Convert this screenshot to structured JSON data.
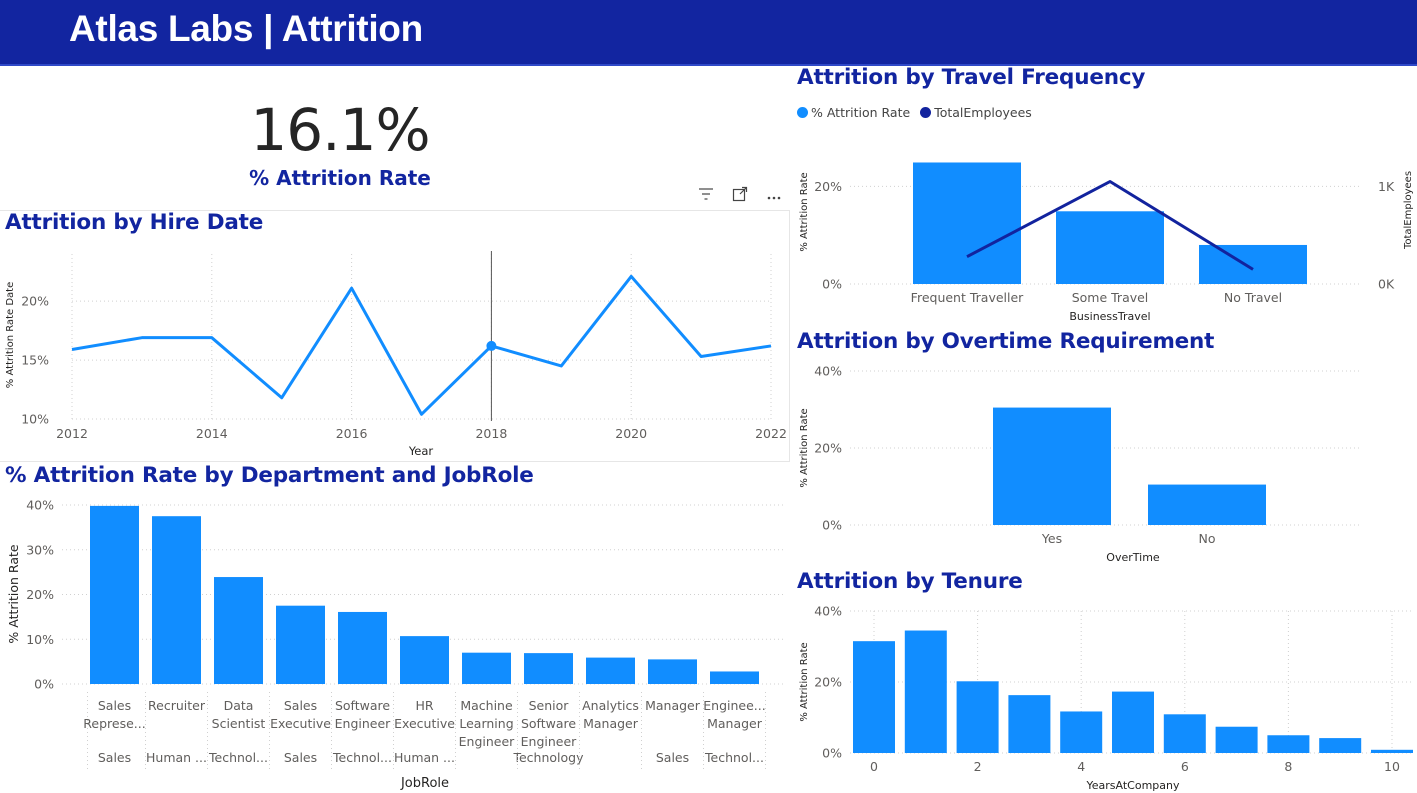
{
  "header": {
    "title": "Atlas Labs | Attrition"
  },
  "kpi": {
    "value": "16.1%",
    "label": "% Attrition Rate"
  },
  "titles": {
    "hire_date": "Attrition by Hire Date",
    "dept_jobrole": "% Attrition Rate by Department and JobRole",
    "travel": "Attrition by Travel Frequency",
    "overtime": "Attrition by Overtime Requirement",
    "tenure": "Attrition by Tenure"
  },
  "visual_icons": [
    "filter-icon",
    "focus-mode-icon",
    "more-options-icon"
  ],
  "legend": {
    "rate": "% Attrition Rate",
    "employees": "TotalEmployees"
  },
  "colors": {
    "primary": "#118dff",
    "secondary": "#12239e",
    "header": "#1225a0"
  },
  "chart_data": [
    {
      "id": "hire_date",
      "type": "line",
      "x": [
        2012,
        2013,
        2014,
        2015,
        2016,
        2017,
        2018,
        2019,
        2020,
        2021,
        2022
      ],
      "series": [
        {
          "values": [
            15.9,
            16.9,
            16.9,
            11.8,
            21.1,
            10.4,
            16.2,
            14.5,
            22.1,
            15.3,
            16.2
          ]
        }
      ],
      "xticks": [
        "2012",
        "2014",
        "2016",
        "2018",
        "2020",
        "2022"
      ],
      "yticks": [
        "10%",
        "15%",
        "20%"
      ],
      "ylim": [
        10,
        24
      ],
      "xlabel": "Year",
      "ylabel": "% Attrition Rate Date",
      "highlight": {
        "x": 2018
      }
    },
    {
      "id": "dept_jobrole",
      "type": "bar",
      "categories": [
        [
          "Sales",
          "Represe..."
        ],
        [
          "Recruiter"
        ],
        [
          "Data",
          "Scientist"
        ],
        [
          "Sales",
          "Executive"
        ],
        [
          "Software",
          "Engineer"
        ],
        [
          "HR",
          "Executive"
        ],
        [
          "Machine",
          "Learning",
          "Engineer"
        ],
        [
          "Senior",
          "Software",
          "Engineer"
        ],
        [
          "Analytics",
          "Manager"
        ],
        [
          "Manager"
        ],
        [
          "Enginee...",
          "Manager"
        ]
      ],
      "departments": [
        "Sales",
        "Human ...",
        "Technol...",
        "Sales",
        "Technol...",
        "Human ...",
        "",
        "Technology",
        "",
        "Sales",
        "Technol..."
      ],
      "values": [
        39.8,
        37.5,
        23.9,
        17.5,
        16.1,
        10.7,
        7.0,
        6.9,
        5.9,
        5.5,
        2.8
      ],
      "yticks": [
        "0%",
        "10%",
        "20%",
        "30%",
        "40%"
      ],
      "ylim": [
        0,
        40
      ],
      "xlabel": "JobRole",
      "ylabel": "% Attrition Rate"
    },
    {
      "id": "travel",
      "type": "bar",
      "categories": [
        "Frequent Traveller",
        "Some Travel",
        "No Travel"
      ],
      "series": [
        {
          "name": "% Attrition Rate",
          "values": [
            24.9,
            14.9,
            8.0
          ]
        },
        {
          "name": "TotalEmployees",
          "values": [
            280,
            1050,
            150
          ]
        }
      ],
      "yticks": [
        "0%",
        "20%"
      ],
      "y2ticks": [
        "0K",
        "1K"
      ],
      "ylim": [
        0,
        25
      ],
      "y2lim": [
        0,
        1250
      ],
      "xlabel": "BusinessTravel",
      "ylabel": "% Attrition Rate",
      "y2label": "TotalEmployees"
    },
    {
      "id": "overtime",
      "type": "bar",
      "categories": [
        "Yes",
        "No"
      ],
      "values": [
        30.5,
        10.5
      ],
      "yticks": [
        "0%",
        "20%",
        "40%"
      ],
      "ylim": [
        0,
        40
      ],
      "xlabel": "OverTime",
      "ylabel": "% Attrition Rate"
    },
    {
      "id": "tenure",
      "type": "bar",
      "x": [
        0,
        1,
        2,
        3,
        4,
        5,
        6,
        7,
        8,
        9,
        10
      ],
      "values": [
        31.5,
        34.5,
        20.2,
        16.3,
        11.7,
        17.3,
        10.9,
        7.4,
        5.0,
        4.2,
        0.9
      ],
      "xticks": [
        "0",
        "2",
        "4",
        "6",
        "8",
        "10"
      ],
      "yticks": [
        "0%",
        "20%",
        "40%"
      ],
      "ylim": [
        0,
        40
      ],
      "xlabel": "YearsAtCompany",
      "ylabel": "% Attrition Rate"
    }
  ]
}
